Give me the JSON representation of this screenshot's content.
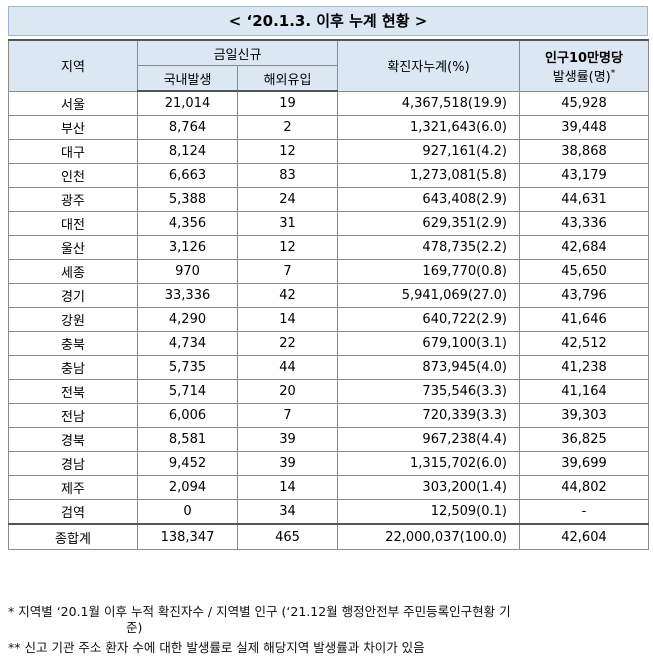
{
  "title": "< ‘20.1.3. 이후 누계 현황 >",
  "headers": {
    "region": "지역",
    "today_new": "금일신규",
    "domestic": "국내발생",
    "overseas": "해외유입",
    "cumulative": "확진자누계(%)",
    "rate_line1": "인구10만명당",
    "rate_line2": "발생률(명)",
    "rate_mark": "*"
  },
  "rows": [
    {
      "region": "서울",
      "domestic": "21,014",
      "overseas": "19",
      "cumulative": "4,367,518(19.9)",
      "rate": "45,928"
    },
    {
      "region": "부산",
      "domestic": "8,764",
      "overseas": "2",
      "cumulative": "1,321,643(6.0)",
      "rate": "39,448"
    },
    {
      "region": "대구",
      "domestic": "8,124",
      "overseas": "12",
      "cumulative": "927,161(4.2)",
      "rate": "38,868"
    },
    {
      "region": "인천",
      "domestic": "6,663",
      "overseas": "83",
      "cumulative": "1,273,081(5.8)",
      "rate": "43,179"
    },
    {
      "region": "광주",
      "domestic": "5,388",
      "overseas": "24",
      "cumulative": "643,408(2.9)",
      "rate": "44,631"
    },
    {
      "region": "대전",
      "domestic": "4,356",
      "overseas": "31",
      "cumulative": "629,351(2.9)",
      "rate": "43,336"
    },
    {
      "region": "울산",
      "domestic": "3,126",
      "overseas": "12",
      "cumulative": "478,735(2.2)",
      "rate": "42,684"
    },
    {
      "region": "세종",
      "domestic": "970",
      "overseas": "7",
      "cumulative": "169,770(0.8)",
      "rate": "45,650"
    },
    {
      "region": "경기",
      "domestic": "33,336",
      "overseas": "42",
      "cumulative": "5,941,069(27.0)",
      "rate": "43,796"
    },
    {
      "region": "강원",
      "domestic": "4,290",
      "overseas": "14",
      "cumulative": "640,722(2.9)",
      "rate": "41,646"
    },
    {
      "region": "충북",
      "domestic": "4,734",
      "overseas": "22",
      "cumulative": "679,100(3.1)",
      "rate": "42,512"
    },
    {
      "region": "충남",
      "domestic": "5,735",
      "overseas": "44",
      "cumulative": "873,945(4.0)",
      "rate": "41,238"
    },
    {
      "region": "전북",
      "domestic": "5,714",
      "overseas": "20",
      "cumulative": "735,546(3.3)",
      "rate": "41,164"
    },
    {
      "region": "전남",
      "domestic": "6,006",
      "overseas": "7",
      "cumulative": "720,339(3.3)",
      "rate": "39,303"
    },
    {
      "region": "경북",
      "domestic": "8,581",
      "overseas": "39",
      "cumulative": "967,238(4.4)",
      "rate": "36,825"
    },
    {
      "region": "경남",
      "domestic": "9,452",
      "overseas": "39",
      "cumulative": "1,315,702(6.0)",
      "rate": "39,699"
    },
    {
      "region": "제주",
      "domestic": "2,094",
      "overseas": "14",
      "cumulative": "303,200(1.4)",
      "rate": "44,802"
    },
    {
      "region": "검역",
      "domestic": "0",
      "overseas": "34",
      "cumulative": "12,509(0.1)",
      "rate": "-"
    }
  ],
  "total": {
    "region": "종합계",
    "domestic": "138,347",
    "overseas": "465",
    "cumulative": "22,000,037(100.0)",
    "rate": "42,604"
  },
  "notes": {
    "note1_line1": "* 지역별 ‘20.1월 이후 누적 확진자수 / 지역별 인구 (‘21.12월 행정안전부 주민등록인구현황 기",
    "note1_line2": "준)",
    "note2": "** 신고 기관 주소 환자 수에 대한 발생률로 실제 해당지역 발생률과 차이가 있음"
  }
}
